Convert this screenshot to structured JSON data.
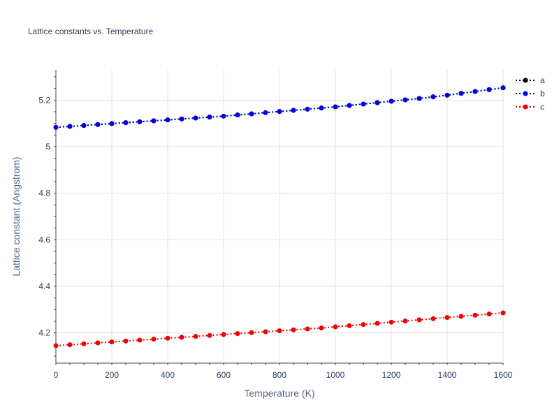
{
  "chart_data": {
    "type": "line",
    "title": "Lattice constants vs. Temperature",
    "xlabel": "Temperature (K)",
    "ylabel": "Lattice constant (Angstrom)",
    "xlim": [
      0,
      1600
    ],
    "ylim": [
      4.07,
      5.33
    ],
    "x_ticks": [
      0,
      200,
      400,
      600,
      800,
      1000,
      1200,
      1400,
      1600
    ],
    "x_tick_labels": [
      "0",
      "200",
      "400",
      "600",
      "800",
      "1000",
      "1200",
      "1400",
      "1600"
    ],
    "y_ticks": [
      4.2,
      4.4,
      4.6,
      4.8,
      5.0,
      5.2
    ],
    "y_tick_labels": [
      "4.2",
      "4.4",
      "4.6",
      "4.8",
      "5",
      "5.2"
    ],
    "grid": true,
    "legend_position": "top-right",
    "x": [
      0,
      50,
      100,
      150,
      200,
      250,
      300,
      350,
      400,
      450,
      500,
      550,
      600,
      650,
      700,
      750,
      800,
      850,
      900,
      950,
      1000,
      1050,
      1100,
      1150,
      1200,
      1250,
      1300,
      1350,
      1400,
      1450,
      1500,
      1550,
      1600
    ],
    "series": [
      {
        "name": "a",
        "color": "#000000",
        "values": [
          5.083,
          5.087,
          5.091,
          5.095,
          5.099,
          5.103,
          5.107,
          5.111,
          5.115,
          5.119,
          5.123,
          5.127,
          5.131,
          5.136,
          5.141,
          5.146,
          5.151,
          5.156,
          5.161,
          5.166,
          5.171,
          5.177,
          5.183,
          5.189,
          5.195,
          5.201,
          5.207,
          5.214,
          5.221,
          5.229,
          5.237,
          5.245,
          5.253
        ]
      },
      {
        "name": "b",
        "color": "#0000dd",
        "values": [
          5.083,
          5.087,
          5.091,
          5.095,
          5.099,
          5.103,
          5.107,
          5.111,
          5.115,
          5.119,
          5.123,
          5.127,
          5.131,
          5.136,
          5.141,
          5.146,
          5.151,
          5.156,
          5.161,
          5.166,
          5.171,
          5.177,
          5.183,
          5.189,
          5.195,
          5.201,
          5.207,
          5.214,
          5.221,
          5.229,
          5.237,
          5.245,
          5.253
        ]
      },
      {
        "name": "c",
        "color": "#ee0000",
        "values": [
          4.145,
          4.149,
          4.153,
          4.157,
          4.161,
          4.165,
          4.169,
          4.173,
          4.177,
          4.181,
          4.185,
          4.189,
          4.193,
          4.197,
          4.201,
          4.205,
          4.209,
          4.213,
          4.217,
          4.221,
          4.226,
          4.231,
          4.236,
          4.241,
          4.246,
          4.251,
          4.256,
          4.261,
          4.266,
          4.271,
          4.276,
          4.281,
          4.286
        ]
      }
    ]
  }
}
